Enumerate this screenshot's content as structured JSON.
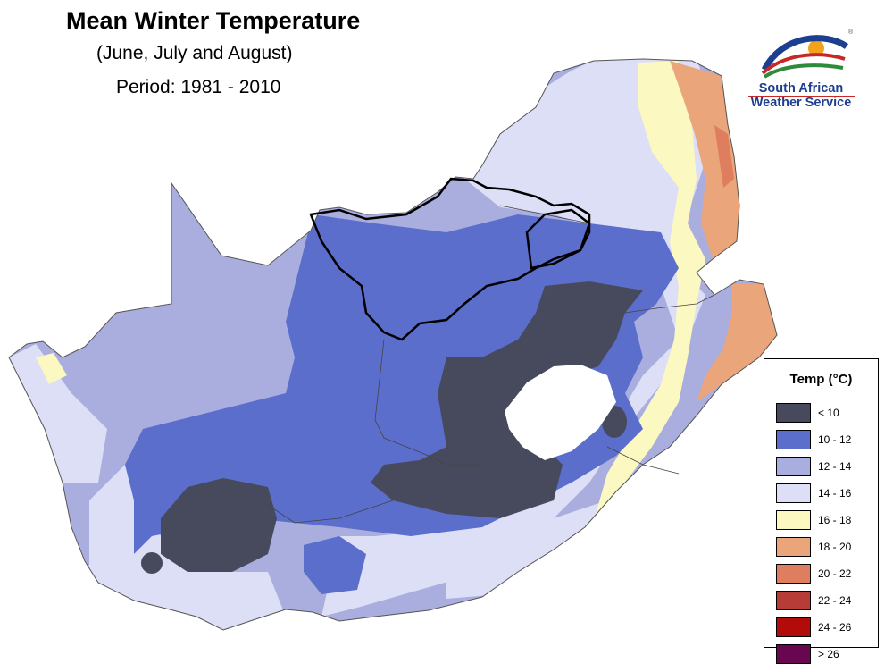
{
  "title": "Mean Winter Temperature",
  "subtitle": "(June, July and August)",
  "period": "Period: 1981 - 2010",
  "logo": {
    "line1": "South African",
    "line2": "Weather Service",
    "registered": "®"
  },
  "legend": {
    "title": "Temp (°C)",
    "items": [
      {
        "label": "< 10",
        "color": "#474a5c"
      },
      {
        "label": "10 - 12",
        "color": "#5b6ecb"
      },
      {
        "label": "12 - 14",
        "color": "#a9aede"
      },
      {
        "label": "14 - 16",
        "color": "#dcdff6"
      },
      {
        "label": "16 - 18",
        "color": "#fbf8c1"
      },
      {
        "label": "18 - 20",
        "color": "#eba57a"
      },
      {
        "label": "20 - 22",
        "color": "#de7e5e"
      },
      {
        "label": "22 - 24",
        "color": "#b73b36"
      },
      {
        "label": "24 - 26",
        "color": "#b30a0a"
      },
      {
        "label": "> 26",
        "color": "#68074f"
      }
    ]
  },
  "colors": {
    "lesotho": "#ffffff",
    "border": "#000000"
  }
}
